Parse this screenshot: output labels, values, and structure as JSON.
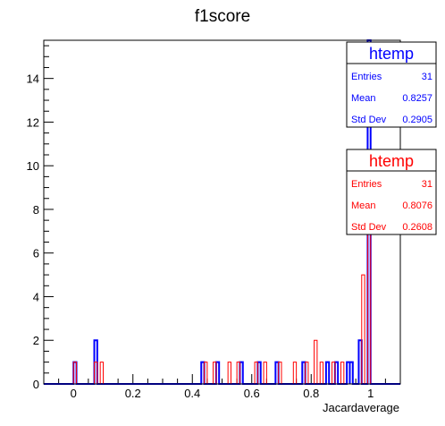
{
  "chart_data": {
    "type": "bar",
    "title": "f1score",
    "xlabel": "Jacardaverage",
    "ylabel": "",
    "xlim": [
      -0.1,
      1.1
    ],
    "ylim": [
      0,
      15.75
    ],
    "xticks": [
      0,
      0.2,
      0.4,
      0.6,
      0.8,
      1
    ],
    "yticks": [
      0,
      2,
      4,
      6,
      8,
      10,
      12,
      14
    ],
    "bin_width": 0.01,
    "series": [
      {
        "name": "htemp",
        "color": "#0000ff",
        "bins": [
          {
            "x": 0.0,
            "count": 1
          },
          {
            "x": 0.07,
            "count": 2
          },
          {
            "x": 0.43,
            "count": 1
          },
          {
            "x": 0.48,
            "count": 1
          },
          {
            "x": 0.56,
            "count": 1
          },
          {
            "x": 0.62,
            "count": 1
          },
          {
            "x": 0.68,
            "count": 1
          },
          {
            "x": 0.77,
            "count": 1
          },
          {
            "x": 0.85,
            "count": 1
          },
          {
            "x": 0.88,
            "count": 1
          },
          {
            "x": 0.92,
            "count": 1
          },
          {
            "x": 0.93,
            "count": 1
          },
          {
            "x": 0.96,
            "count": 2
          },
          {
            "x": 0.99,
            "count": 16
          }
        ]
      },
      {
        "name": "htemp",
        "color": "#ff0000",
        "bins": [
          {
            "x": 0.0,
            "count": 1
          },
          {
            "x": 0.07,
            "count": 1
          },
          {
            "x": 0.09,
            "count": 1
          },
          {
            "x": 0.44,
            "count": 1
          },
          {
            "x": 0.47,
            "count": 1
          },
          {
            "x": 0.52,
            "count": 1
          },
          {
            "x": 0.55,
            "count": 1
          },
          {
            "x": 0.61,
            "count": 1
          },
          {
            "x": 0.64,
            "count": 1
          },
          {
            "x": 0.69,
            "count": 1
          },
          {
            "x": 0.74,
            "count": 1
          },
          {
            "x": 0.78,
            "count": 1
          },
          {
            "x": 0.81,
            "count": 2
          },
          {
            "x": 0.83,
            "count": 1
          },
          {
            "x": 0.87,
            "count": 1
          },
          {
            "x": 0.9,
            "count": 1
          },
          {
            "x": 0.97,
            "count": 5
          },
          {
            "x": 0.99,
            "count": 9
          }
        ]
      }
    ]
  },
  "stats_boxes": [
    {
      "title": "htemp",
      "color": "#0000ff",
      "rows": [
        {
          "label": "Entries",
          "value": "31"
        },
        {
          "label": "Mean",
          "value": "0.8257"
        },
        {
          "label": "Std Dev",
          "value": "0.2905"
        }
      ]
    },
    {
      "title": "htemp",
      "color": "#ff0000",
      "rows": [
        {
          "label": "Entries",
          "value": "31"
        },
        {
          "label": "Mean",
          "value": "0.8076"
        },
        {
          "label": "Std Dev",
          "value": "0.2608"
        }
      ]
    }
  ]
}
